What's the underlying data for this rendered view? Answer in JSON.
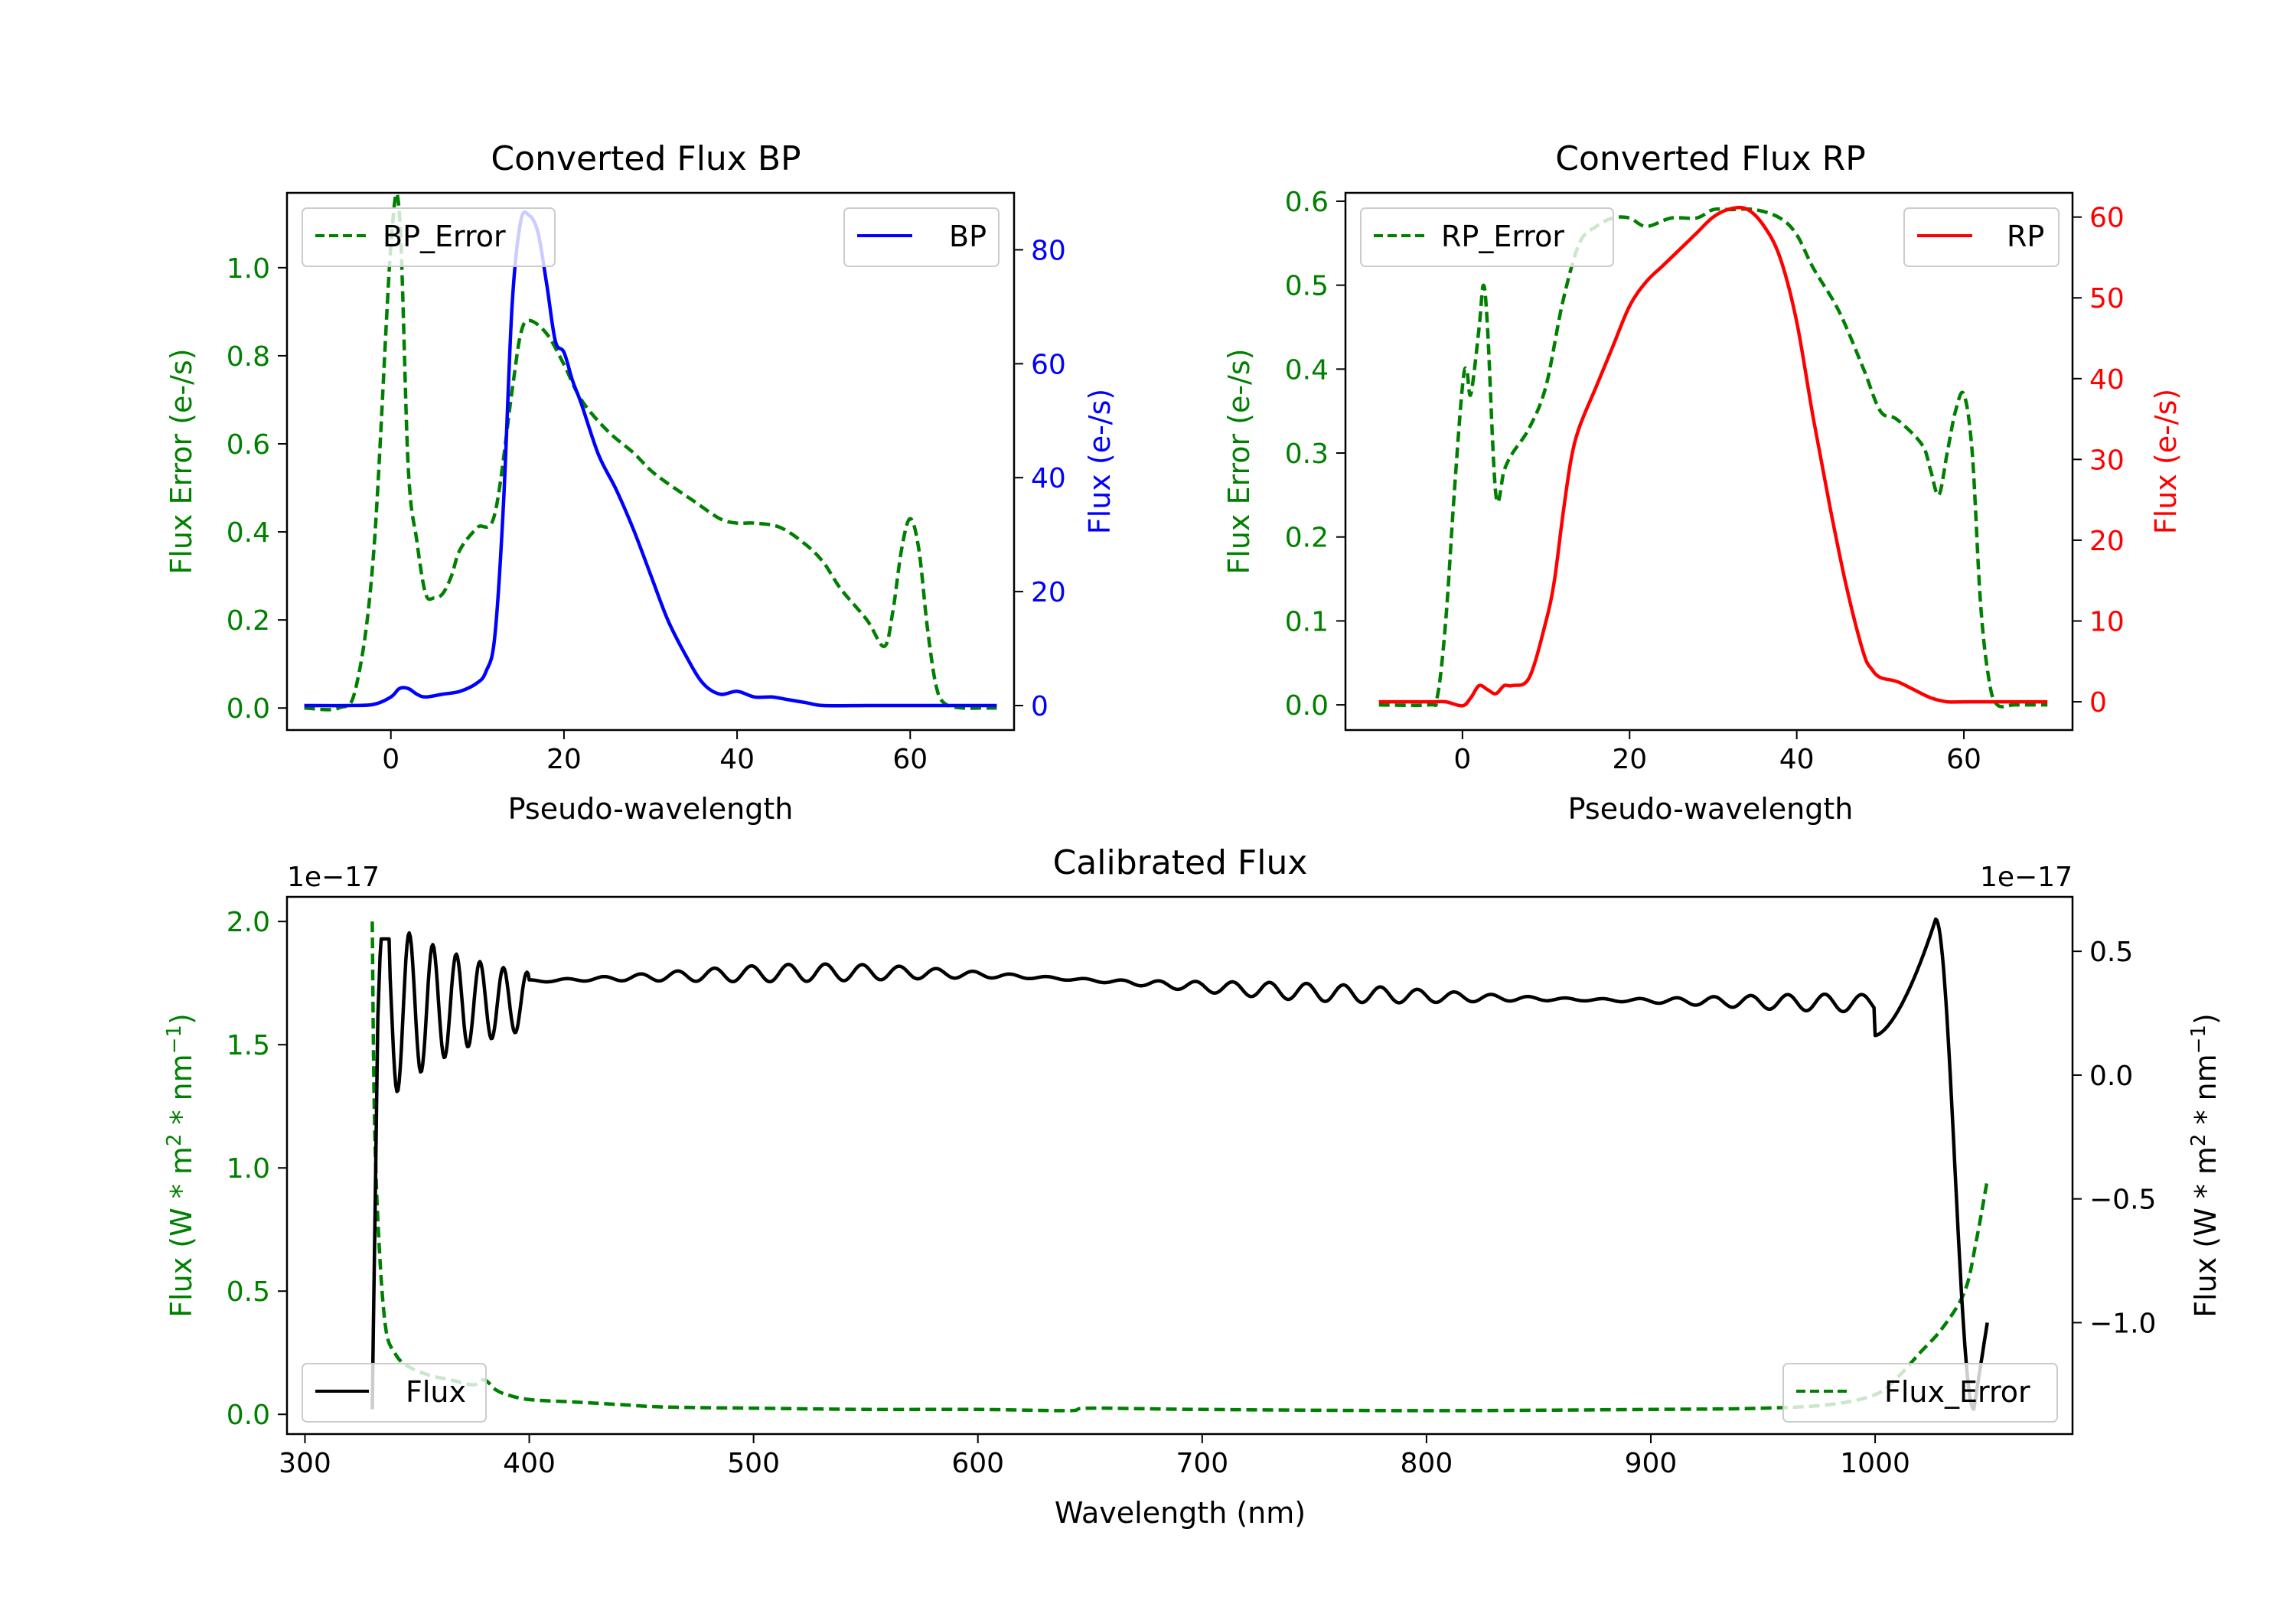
{
  "chart_data": [
    {
      "id": "bp",
      "type": "line",
      "title": "Converted Flux BP",
      "xlabel": "Pseudo-wavelength",
      "xlim": [
        -12,
        72
      ],
      "xticks": [
        0,
        20,
        40,
        60
      ],
      "y_left": {
        "label": "Flux Error (e-/s)",
        "color": "#008000",
        "lim": [
          -0.05,
          1.17
        ],
        "ticks": [
          0.0,
          0.2,
          0.4,
          0.6,
          0.8,
          1.0
        ],
        "tick_labels": [
          "0.0",
          "0.2",
          "0.4",
          "0.6",
          "0.8",
          "1.0"
        ]
      },
      "y_right": {
        "label": "Flux (e-/s)",
        "color": "#0000ff",
        "lim": [
          -4.3,
          90
        ],
        "ticks": [
          0,
          20,
          40,
          60,
          80
        ],
        "tick_labels": [
          "0",
          "20",
          "40",
          "60",
          "80"
        ]
      },
      "series": [
        {
          "name": "BP_Error",
          "axis": "left",
          "color": "#008000",
          "dashed": true,
          "x": [
            -10,
            -6,
            -4,
            -2,
            0,
            1,
            2,
            3,
            4,
            5,
            6,
            7,
            8,
            10,
            12,
            14,
            15,
            16,
            18,
            20,
            22,
            25,
            28,
            30,
            32,
            35,
            38,
            40,
            42,
            45,
            48,
            50,
            52,
            55,
            57,
            58,
            59,
            60,
            61,
            62,
            63,
            64,
            66,
            68,
            70
          ],
          "y": [
            0.0,
            0.0,
            0.05,
            0.35,
            1.05,
            1.12,
            0.55,
            0.38,
            0.26,
            0.25,
            0.26,
            0.3,
            0.36,
            0.41,
            0.44,
            0.72,
            0.85,
            0.88,
            0.85,
            0.78,
            0.7,
            0.63,
            0.58,
            0.54,
            0.51,
            0.47,
            0.43,
            0.42,
            0.42,
            0.41,
            0.37,
            0.33,
            0.27,
            0.2,
            0.14,
            0.22,
            0.36,
            0.43,
            0.36,
            0.18,
            0.05,
            0.01,
            0.0,
            0.0,
            0.0
          ]
        },
        {
          "name": "BP",
          "axis": "right",
          "color": "#0000ff",
          "dashed": false,
          "x": [
            -10,
            -5,
            -2,
            0,
            1,
            2,
            3,
            4,
            6,
            8,
            10,
            11,
            12,
            13,
            14,
            15,
            16,
            17,
            18,
            19,
            20,
            21,
            22,
            24,
            26,
            28,
            30,
            32,
            34,
            36,
            38,
            40,
            42,
            44,
            46,
            48,
            50,
            55,
            60,
            65,
            70
          ],
          "y": [
            0,
            0,
            0.2,
            1.5,
            3,
            3,
            2,
            1.5,
            2,
            2.5,
            4,
            6,
            12,
            35,
            70,
            85,
            86,
            83,
            74,
            64,
            62,
            57,
            53,
            44,
            38,
            31,
            23,
            15,
            9,
            4,
            2,
            2.5,
            1.5,
            1.5,
            1,
            0.5,
            0,
            0,
            0,
            0,
            0
          ]
        }
      ],
      "legend": [
        {
          "label": "BP_Error",
          "position": "upper-left"
        },
        {
          "label": "BP",
          "position": "upper-right"
        }
      ]
    },
    {
      "id": "rp",
      "type": "line",
      "title": "Converted Flux RP",
      "xlabel": "Pseudo-wavelength",
      "xlim": [
        -14,
        73
      ],
      "xticks": [
        0,
        20,
        40,
        60
      ],
      "y_left": {
        "label": "Flux Error (e-/s)",
        "color": "#008000",
        "lim": [
          -0.03,
          0.61
        ],
        "ticks": [
          0.0,
          0.1,
          0.2,
          0.3,
          0.4,
          0.5,
          0.6
        ],
        "tick_labels": [
          "0.0",
          "0.1",
          "0.2",
          "0.3",
          "0.4",
          "0.5",
          "0.6"
        ]
      },
      "y_right": {
        "label": "Flux (e-/s)",
        "color": "#ff0000",
        "lim": [
          -3.5,
          63
        ],
        "ticks": [
          0,
          10,
          20,
          30,
          40,
          50,
          60
        ],
        "tick_labels": [
          "0",
          "10",
          "20",
          "30",
          "40",
          "50",
          "60"
        ]
      },
      "series": [
        {
          "name": "RP_Error",
          "axis": "right_dummy",
          "color": "#008000",
          "dashed": true,
          "x": [
            -10,
            -4,
            -3,
            -2,
            -1,
            0,
            0.5,
            1,
            2,
            2.5,
            3,
            4,
            5,
            6,
            8,
            10,
            12,
            14,
            16,
            18,
            20,
            22,
            25,
            28,
            30,
            32,
            35,
            38,
            40,
            42,
            45,
            48,
            50,
            52,
            55,
            56,
            57,
            58,
            59,
            60,
            61,
            62,
            63,
            64,
            66,
            68,
            70
          ],
          "y": [
            0.0,
            0.0,
            0.01,
            0.1,
            0.25,
            0.38,
            0.4,
            0.37,
            0.45,
            0.5,
            0.45,
            0.25,
            0.28,
            0.3,
            0.33,
            0.38,
            0.48,
            0.55,
            0.57,
            0.58,
            0.58,
            0.57,
            0.58,
            0.58,
            0.59,
            0.59,
            0.59,
            0.58,
            0.56,
            0.52,
            0.47,
            0.4,
            0.35,
            0.34,
            0.31,
            0.28,
            0.25,
            0.3,
            0.35,
            0.37,
            0.3,
            0.12,
            0.03,
            0.0,
            0.0,
            0.0,
            0.0
          ]
        },
        {
          "name": "RP",
          "axis": "right",
          "color": "#ff0000",
          "dashed": false,
          "x": [
            -10,
            -4,
            -2,
            0,
            1,
            2,
            3,
            4,
            5,
            6,
            8,
            10,
            11,
            12,
            13,
            14,
            16,
            18,
            20,
            22,
            24,
            26,
            28,
            30,
            32,
            34,
            36,
            38,
            40,
            42,
            44,
            46,
            48,
            49,
            50,
            52,
            54,
            56,
            58,
            60,
            62,
            65,
            70
          ],
          "y": [
            0,
            0,
            0,
            -0.5,
            0.5,
            2,
            1.5,
            1,
            2,
            2,
            3,
            10,
            15,
            23,
            30,
            34,
            39,
            44,
            49,
            52,
            54,
            56,
            58,
            60,
            61,
            61,
            59,
            55,
            47,
            35,
            24,
            14,
            6,
            4,
            3,
            2.5,
            1.5,
            0.5,
            0,
            0,
            0,
            0,
            0
          ]
        }
      ],
      "legend": [
        {
          "label": "RP_Error",
          "position": "upper-left"
        },
        {
          "label": "RP",
          "position": "upper-right"
        }
      ]
    },
    {
      "id": "cal",
      "type": "line",
      "title": "Calibrated Flux",
      "xlabel": "Wavelength (nm)",
      "xlim": [
        292,
        1088
      ],
      "xticks": [
        300,
        400,
        500,
        600,
        700,
        800,
        900,
        1000
      ],
      "y_left": {
        "label_prefix": "Flux (W * m",
        "label_mid": " * nm",
        "label_suffix": ")",
        "sup1": "2",
        "sup2": "−1",
        "color": "#008000",
        "lim": [
          -0.08,
          2.1
        ],
        "ticks": [
          0.0,
          0.5,
          1.0,
          1.5,
          2.0
        ],
        "tick_labels": [
          "0.0",
          "0.5",
          "1.0",
          "1.5",
          "2.0"
        ],
        "offset": "1e−17"
      },
      "y_right": {
        "label_prefix": "Flux (W * m",
        "label_mid": " * nm",
        "label_suffix": ")",
        "sup1": "2",
        "sup2": "−1",
        "color": "#000000",
        "lim": [
          -1.45,
          0.72
        ],
        "ticks": [
          -1.0,
          -0.5,
          0.0,
          0.5
        ],
        "tick_labels": [
          "−1.0",
          "−0.5",
          "0.0",
          "0.5"
        ],
        "offset": "1e−17"
      },
      "series": [
        {
          "name": "Flux_Error",
          "axis": "left",
          "color": "#008000",
          "dashed": true,
          "x": [
            330,
            331,
            333,
            336,
            340,
            345,
            355,
            365,
            375,
            380,
            385,
            390,
            400,
            420,
            440,
            460,
            500,
            550,
            600,
            640,
            650,
            700,
            800,
            900,
            950,
            980,
            1000,
            1010,
            1020,
            1030,
            1040,
            1045,
            1050
          ],
          "y": [
            2.0,
            1.2,
            0.7,
            0.35,
            0.25,
            0.2,
            0.16,
            0.14,
            0.12,
            0.14,
            0.1,
            0.08,
            0.06,
            0.05,
            0.04,
            0.03,
            0.025,
            0.02,
            0.02,
            0.015,
            0.025,
            0.02,
            0.015,
            0.02,
            0.025,
            0.04,
            0.08,
            0.15,
            0.25,
            0.35,
            0.5,
            0.7,
            0.95
          ]
        },
        {
          "name": "Flux",
          "axis": "right",
          "color": "#000000",
          "dashed": false,
          "generator": "oscillating",
          "range": [
            330,
            1050
          ],
          "baseline": 0.3,
          "edge_start": -1.35,
          "edge_end": -1.0,
          "peak_end": 0.63,
          "trough_end": -1.35
        }
      ],
      "legend": [
        {
          "label": "Flux",
          "position": "lower-left"
        },
        {
          "label": "Flux_Error",
          "position": "lower-right"
        }
      ]
    }
  ]
}
